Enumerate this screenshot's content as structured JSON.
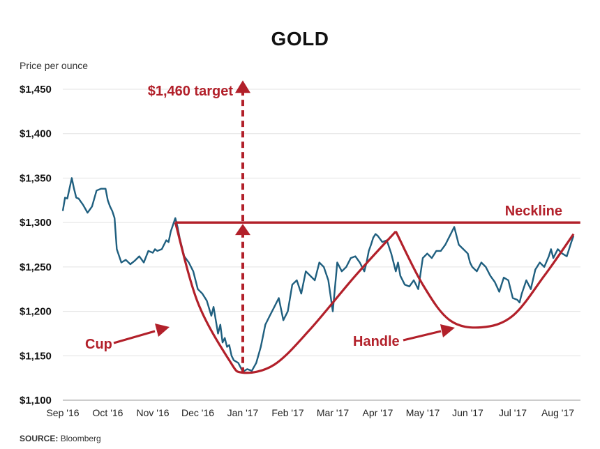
{
  "chart_data": {
    "type": "line",
    "title": "GOLD",
    "ylabel": "Price per ounce",
    "source_label": "SOURCE:",
    "source_text": "Bloomberg",
    "ylim": [
      1100,
      1450
    ],
    "y_ticks": [
      1100,
      1150,
      1200,
      1250,
      1300,
      1350,
      1400,
      1450
    ],
    "y_tick_labels": [
      "$1,100",
      "$1,150",
      "$1,200",
      "$1,250",
      "$1,300",
      "$1,350",
      "$1,400",
      "$1,450"
    ],
    "x_tick_labels": [
      "Sep '16",
      "Oct '16",
      "Nov '16",
      "Dec '16",
      "Jan '17",
      "Feb '17",
      "Mar '17",
      "Apr '17",
      "May '17",
      "Jun '17",
      "Jul '17",
      "Aug '17"
    ],
    "grid": true,
    "line_color": "#1f5f7f",
    "annotation_color": "#b2202a",
    "series": [
      {
        "x": [
          0,
          0.05,
          0.1,
          0.2,
          0.25,
          0.3,
          0.35,
          0.45,
          0.55,
          0.65,
          0.75,
          0.85,
          0.95,
          1.0,
          1.05,
          1.1,
          1.15,
          1.2,
          1.3,
          1.4,
          1.5,
          1.6,
          1.7,
          1.8,
          1.9,
          2.0,
          2.05,
          2.1,
          2.2,
          2.3,
          2.35,
          2.4,
          2.5,
          2.55,
          2.6,
          2.7,
          2.8,
          2.9,
          3.0,
          3.1,
          3.2,
          3.3,
          3.35,
          3.45,
          3.5,
          3.55,
          3.6,
          3.65,
          3.7,
          3.75,
          3.8,
          3.9,
          4.0,
          4.1,
          4.2,
          4.3,
          4.4,
          4.5,
          4.6,
          4.7,
          4.8,
          4.9,
          5.0,
          5.1,
          5.2,
          5.3,
          5.4,
          5.5,
          5.6,
          5.7,
          5.8,
          5.9,
          6.0,
          6.1,
          6.2,
          6.3,
          6.4,
          6.5,
          6.6,
          6.7,
          6.75,
          6.8,
          6.85,
          6.9,
          6.95,
          7.0,
          7.1,
          7.2,
          7.3,
          7.4,
          7.45,
          7.5,
          7.6,
          7.7,
          7.8,
          7.9,
          8.0,
          8.1,
          8.2,
          8.3,
          8.4,
          8.5,
          8.6,
          8.7,
          8.8,
          8.9,
          9.0,
          9.05,
          9.1,
          9.2,
          9.3,
          9.4,
          9.5,
          9.6,
          9.7,
          9.8,
          9.9,
          10.0,
          10.1,
          10.15,
          10.2,
          10.3,
          10.4,
          10.5,
          10.6,
          10.7,
          10.8,
          10.85,
          10.9,
          11.0,
          11.1,
          11.2,
          11.3,
          11.35
        ],
        "y": [
          1313,
          1328,
          1327,
          1350,
          1338,
          1328,
          1327,
          1320,
          1311,
          1318,
          1336,
          1338,
          1338,
          1325,
          1318,
          1313,
          1305,
          1270,
          1255,
          1258,
          1253,
          1257,
          1262,
          1255,
          1268,
          1266,
          1270,
          1268,
          1270,
          1280,
          1278,
          1290,
          1305,
          1295,
          1282,
          1262,
          1255,
          1245,
          1225,
          1220,
          1212,
          1195,
          1205,
          1175,
          1185,
          1165,
          1170,
          1160,
          1162,
          1150,
          1145,
          1142,
          1132,
          1135,
          1133,
          1142,
          1160,
          1185,
          1195,
          1205,
          1215,
          1190,
          1200,
          1230,
          1235,
          1220,
          1245,
          1240,
          1235,
          1255,
          1250,
          1235,
          1200,
          1255,
          1245,
          1250,
          1260,
          1262,
          1255,
          1245,
          1255,
          1268,
          1275,
          1283,
          1287,
          1285,
          1278,
          1280,
          1265,
          1245,
          1255,
          1240,
          1230,
          1228,
          1235,
          1225,
          1260,
          1265,
          1260,
          1268,
          1268,
          1275,
          1285,
          1295,
          1275,
          1270,
          1265,
          1255,
          1250,
          1245,
          1255,
          1250,
          1240,
          1233,
          1222,
          1238,
          1235,
          1215,
          1213,
          1210,
          1220,
          1235,
          1225,
          1247,
          1255,
          1250,
          1262,
          1270,
          1260,
          1270,
          1265,
          1262,
          1278,
          1285
        ]
      }
    ],
    "neckline": {
      "y": 1300,
      "x_start": 2.5,
      "x_end": 11.5
    },
    "target_arrow": {
      "x": 4.0,
      "y_from": 1130,
      "y_to": 1460
    },
    "cup_curve": [
      [
        2.5,
        1300
      ],
      [
        3.0,
        1210
      ],
      [
        3.7,
        1145
      ],
      [
        4.0,
        1131
      ],
      [
        4.7,
        1140
      ],
      [
        5.5,
        1180
      ],
      [
        6.5,
        1240
      ],
      [
        7.4,
        1290
      ]
    ],
    "handle_curve": [
      [
        7.4,
        1290
      ],
      [
        8.0,
        1230
      ],
      [
        8.6,
        1190
      ],
      [
        9.3,
        1182
      ],
      [
        10.0,
        1195
      ],
      [
        10.7,
        1240
      ],
      [
        11.35,
        1287
      ]
    ],
    "annotations": {
      "target": "$1,460 target",
      "neckline": "Neckline",
      "cup": "Cup",
      "handle": "Handle"
    }
  }
}
